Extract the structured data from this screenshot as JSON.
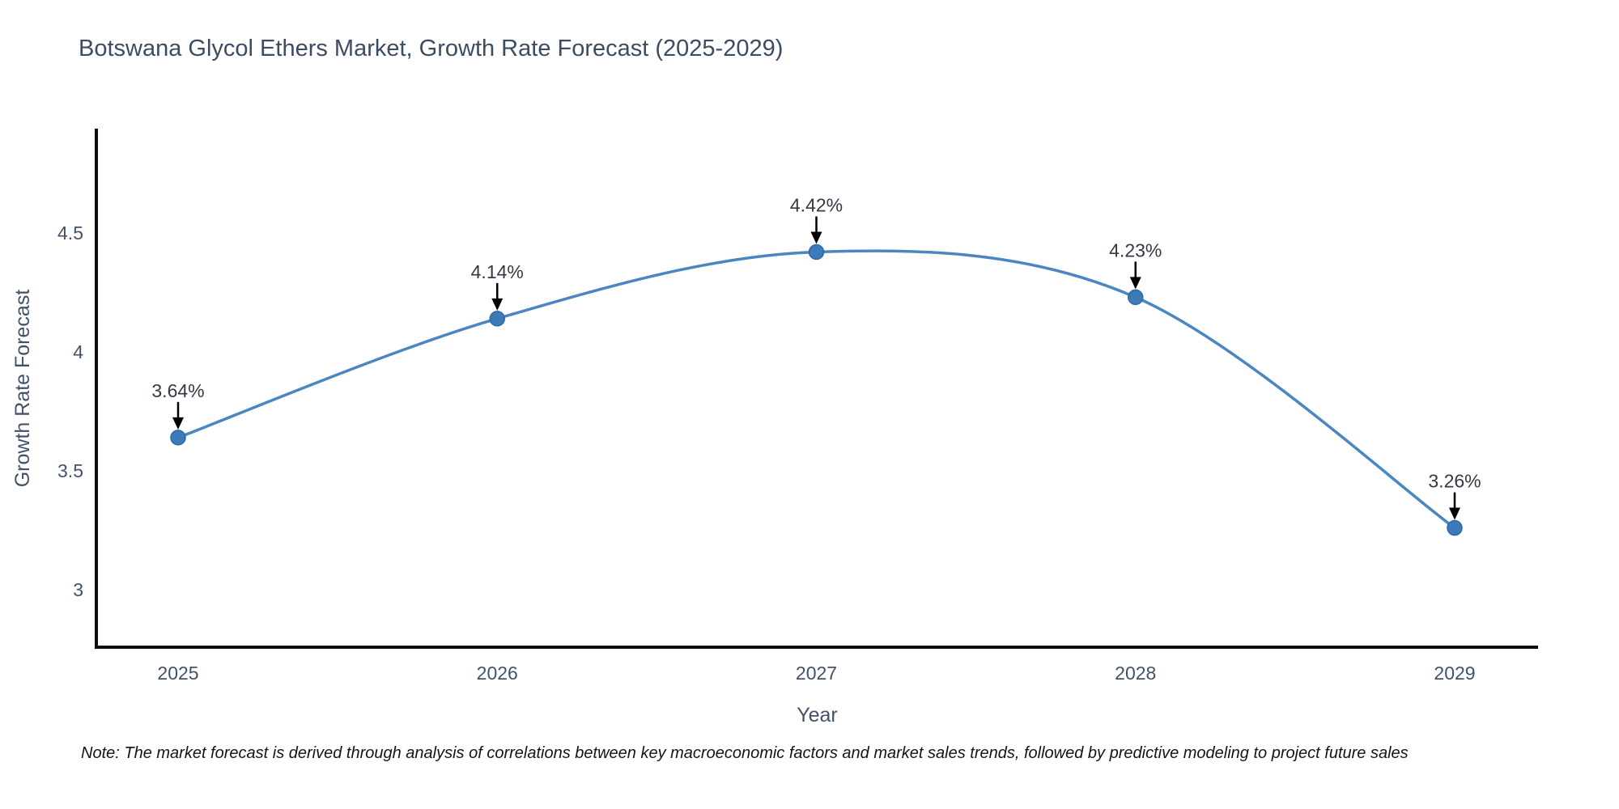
{
  "title": "Botswana Glycol Ethers Market, Growth Rate Forecast (2025-2029)",
  "note": "Note: The market forecast is derived through analysis of correlations between key macroeconomic factors and market sales trends, followed by predictive modeling to project future sales",
  "chart_data": {
    "type": "line",
    "title": "Botswana Glycol Ethers Market, Growth Rate Forecast (2025-2029)",
    "xlabel": "Year",
    "ylabel": "Growth Rate Forecast",
    "categories": [
      "2025",
      "2026",
      "2027",
      "2028",
      "2029"
    ],
    "x": [
      2025,
      2026,
      2027,
      2028,
      2029
    ],
    "series": [
      {
        "name": "Growth Rate Forecast",
        "values": [
          3.64,
          4.14,
          4.42,
          4.23,
          3.26
        ],
        "labels": [
          "3.64%",
          "4.14%",
          "4.42%",
          "4.23%",
          "3.26%"
        ]
      }
    ],
    "line_shape": "spline",
    "markers": true,
    "grid": false,
    "legend": "none",
    "ylim": [
      2.76,
      4.94
    ],
    "yticks": [
      3,
      3.5,
      4,
      4.5
    ],
    "ytick_labels": [
      "3",
      "3.5",
      "4",
      "4.5"
    ],
    "annotation_style": "arrow-down-to-point",
    "colors": {
      "line": "#4a86bf",
      "marker": "#3c7ab8",
      "marker_edge": "#2e6aa5",
      "axis": "#0d0d0d",
      "tick_text": "#42526b",
      "title_text": "#3b4c63",
      "annotation_text": "#333a45",
      "arrow": "#000000",
      "note_text": "#141414",
      "background": "#ffffff"
    }
  }
}
